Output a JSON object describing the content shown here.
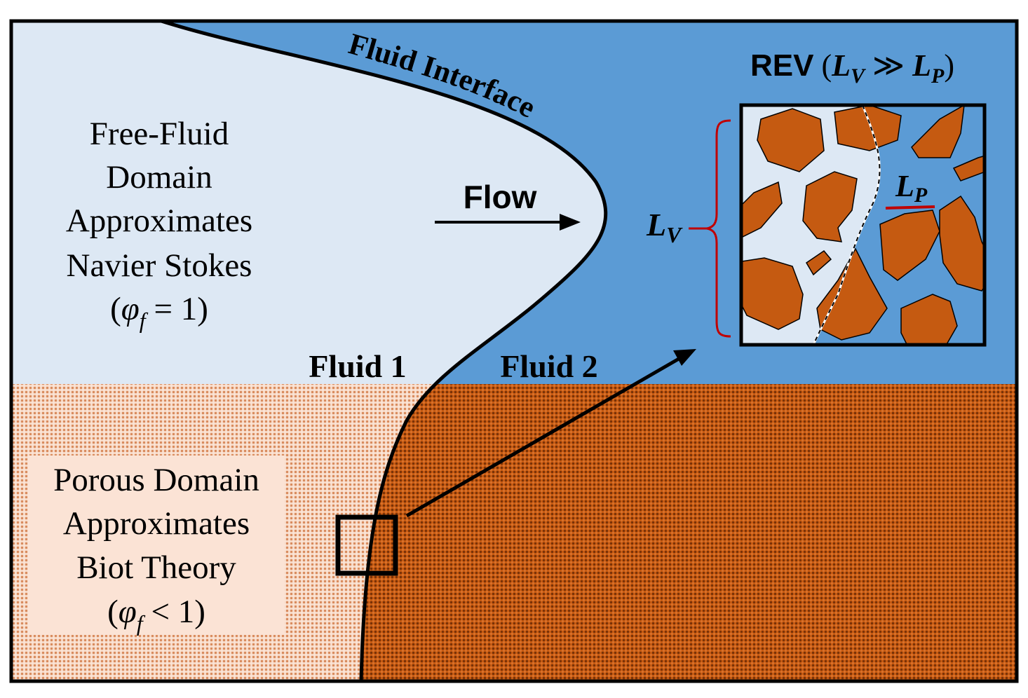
{
  "labels": {
    "interface": "Fluid Interface",
    "flow": "Flow",
    "fluid1": "Fluid 1",
    "fluid2": "Fluid 2",
    "free_fluid": [
      "Free-Fluid",
      "Domain",
      "Approximates",
      "Navier Stokes"
    ],
    "free_fluid_phi": {
      "open": "(",
      "sym": "φ",
      "sub": "f",
      "rel": " = 1)"
    },
    "porous": [
      "Porous Domain",
      "Approximates",
      "Biot Theory"
    ],
    "porous_phi": {
      "open": "(",
      "sym": "φ",
      "sub": "f",
      "rel": " < 1)"
    },
    "rev_prefix": "REV",
    "rev_open": " (",
    "rev_L": "L",
    "rev_sub_v": "V",
    "rev_mid": " ≫ ",
    "rev_sub_p": "P",
    "rev_close": ")",
    "lv_main": "L",
    "lv_sub": "V",
    "lp_main": "L",
    "lp_sub": "P"
  },
  "colors": {
    "fluid1_free": "#dde8f4",
    "fluid2_free": "#5b9bd5",
    "porous_fluid1": "#fbe3d5",
    "porous_fluid2": "#c55a11",
    "grain": "#c55a11",
    "bracket": "#c00000",
    "outline": "#000000"
  }
}
